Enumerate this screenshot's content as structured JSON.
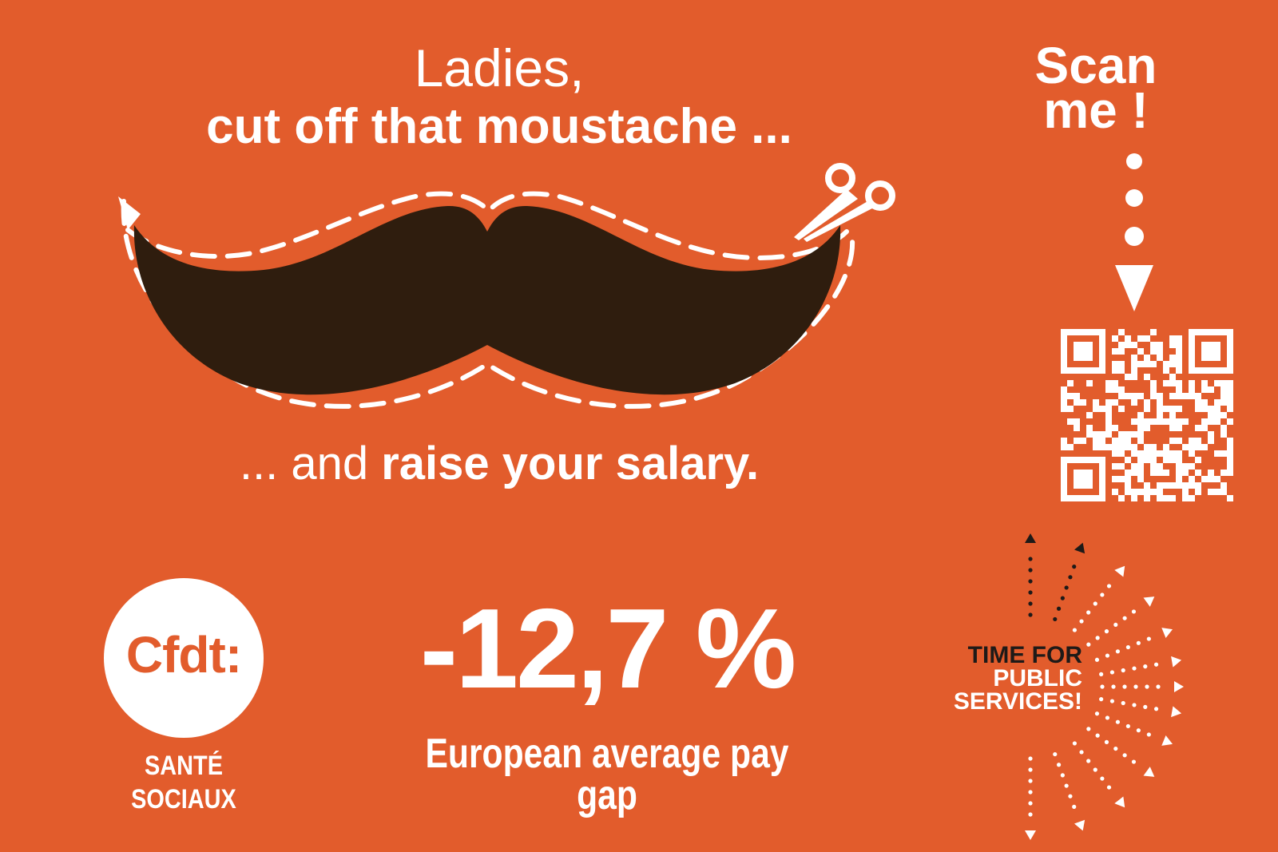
{
  "headline": {
    "line1": "Ladies,",
    "line2": "cut off that moustache ..."
  },
  "subline": {
    "prefix": "... and",
    "emphasis": "raise your salary."
  },
  "scan": {
    "line1": "Scan",
    "line2": "me !"
  },
  "stat": {
    "value": "-12,7 %",
    "caption": "European average pay gap"
  },
  "logo": {
    "name": "Cfdt:",
    "sub_line1": "SANTÉ",
    "sub_line2": "SOCIAUX"
  },
  "campaign": {
    "line1": "TIME FOR",
    "line2": "PUBLIC",
    "line3": "SERVICES!"
  },
  "colors": {
    "background": "#e25c2c",
    "moustache": "#2f1d0e",
    "text": "#ffffff",
    "dark_text": "#1e1a18"
  },
  "icons": [
    "moustache-illustration",
    "scissors-icon",
    "qr-code",
    "arrow-down-icon",
    "burst-arrows-icon"
  ]
}
